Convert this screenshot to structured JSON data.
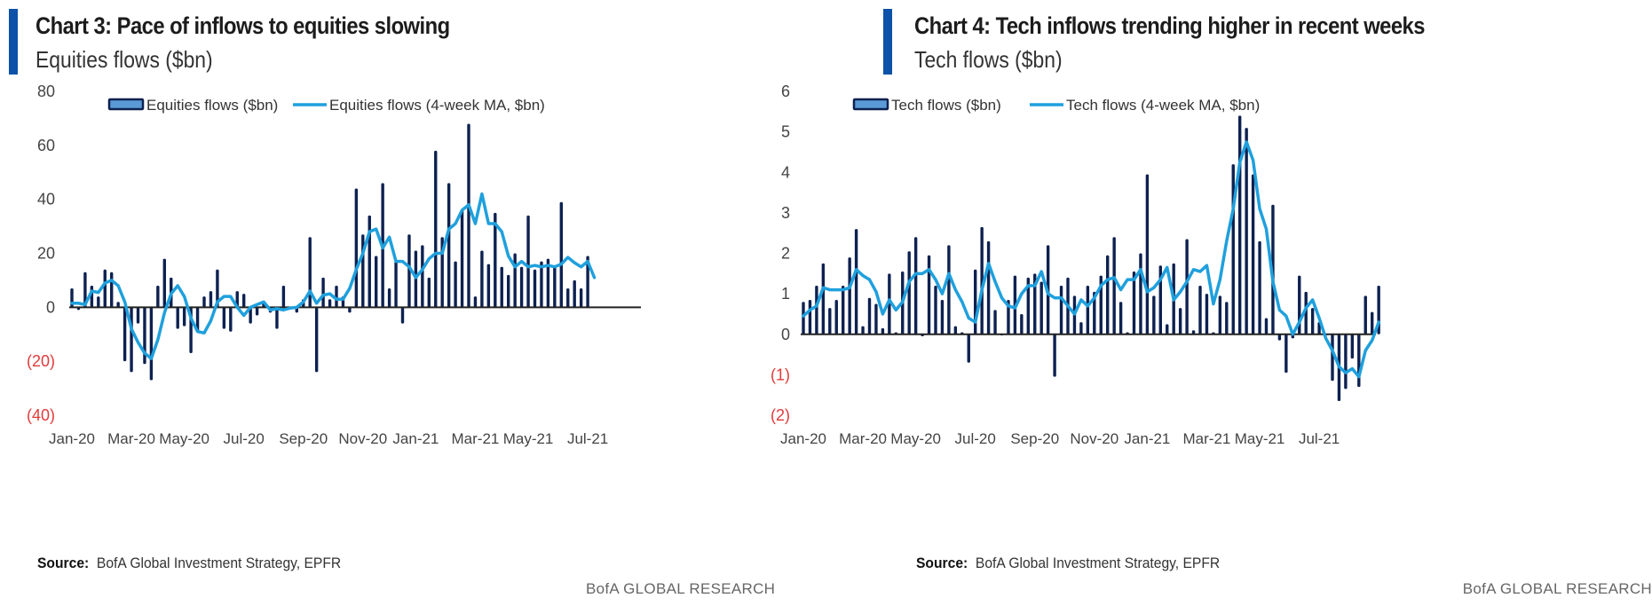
{
  "footer_brand": "BofA GLOBAL RESEARCH",
  "source_label": "Source:",
  "source_text": "BofA Global Investment Strategy, EPFR",
  "colors": {
    "accent": "#0b52a8",
    "bars": "#0d2150",
    "ma_line": "#1fa0dd",
    "negative_tick": "#e03a3a",
    "axis": "#222222"
  },
  "chart_data": [
    {
      "type": "bar",
      "title": "Chart 3: Pace of inflows to equities slowing",
      "subtitle": "Equities flows ($bn)",
      "xlabel": "",
      "ylabel": "Equities flows ($bn)",
      "ylim": [
        -40,
        80
      ],
      "yticks": [
        80,
        60,
        40,
        20,
        0,
        -20,
        -40
      ],
      "ytick_labels": [
        "80",
        "60",
        "40",
        "20",
        "0",
        "(20)",
        "(40)"
      ],
      "xtick_labels": [
        "Jan-20",
        "Mar-20",
        "May-20",
        "Jul-20",
        "Sep-20",
        "Nov-20",
        "Jan-21",
        "Mar-21",
        "May-21",
        "Jul-21"
      ],
      "xtick_index": [
        0,
        9,
        17,
        26,
        35,
        44,
        52,
        61,
        69,
        78
      ],
      "legend": {
        "placement": "top",
        "bars_label": "Equities flows ($bn)",
        "line_label": "Equities flows (4-week MA, $bn)"
      },
      "grid": false,
      "series": [
        {
          "name": "Equities flows ($bn)",
          "kind": "bar",
          "values": [
            7,
            -1,
            13,
            8,
            4,
            14,
            13,
            2,
            -20,
            -24,
            -6,
            -21,
            -27,
            8,
            18,
            11,
            -8,
            -7,
            -17,
            -9,
            4,
            6,
            14,
            -8,
            -9,
            6,
            5,
            -6,
            -3,
            2,
            -2,
            -8,
            8,
            0,
            -2,
            3,
            26,
            -24,
            11,
            3,
            8,
            4,
            -2,
            44,
            27,
            34,
            19,
            46,
            7,
            17,
            -6,
            27,
            21,
            23,
            11,
            58,
            26,
            46,
            17,
            36,
            68,
            4,
            21,
            16,
            35,
            15,
            12,
            20,
            15,
            34,
            14,
            17,
            18,
            15,
            39,
            7,
            10,
            7,
            19
          ]
        },
        {
          "name": "Equities flows (4-week MA, $bn)",
          "kind": "line",
          "values": [
            1.5,
            1.5,
            1,
            6,
            5.5,
            9,
            10,
            8,
            2,
            -8,
            -13,
            -17,
            -19,
            -12,
            -2,
            5,
            8,
            4,
            -4,
            -9,
            -9.5,
            -5,
            2,
            4,
            4,
            0,
            -3,
            0,
            1,
            2,
            -1,
            -0.5,
            -1,
            -0.3,
            0,
            2,
            6,
            1.5,
            4.5,
            5,
            3,
            3,
            7,
            14,
            20,
            28,
            29,
            22,
            26,
            17,
            17,
            15,
            11,
            14,
            18,
            20,
            20,
            29,
            31,
            36,
            38,
            31,
            42,
            31,
            31,
            28,
            19,
            15,
            17,
            15,
            15.5,
            15,
            15.5,
            15,
            16,
            18.5,
            16.5,
            15,
            17,
            11
          ]
        }
      ]
    },
    {
      "type": "bar",
      "title": "Chart 4: Tech inflows trending higher in recent weeks",
      "subtitle": "Tech flows ($bn)",
      "xlabel": "",
      "ylabel": "Tech flows ($bn)",
      "ylim": [
        -2,
        6
      ],
      "yticks": [
        6,
        5,
        4,
        3,
        2,
        1,
        0,
        -1,
        -2
      ],
      "ytick_labels": [
        "6",
        "5",
        "4",
        "3",
        "2",
        "1",
        "0",
        "(1)",
        "(2)"
      ],
      "xtick_labels": [
        "Jan-20",
        "Mar-20",
        "May-20",
        "Jul-20",
        "Sep-20",
        "Nov-20",
        "Jan-21",
        "Mar-21",
        "May-21",
        "Jul-21"
      ],
      "xtick_index": [
        0,
        9,
        17,
        26,
        35,
        44,
        52,
        61,
        69,
        78
      ],
      "legend": {
        "placement": "top",
        "bars_label": "Tech flows ($bn)",
        "line_label": "Tech flows (4-week MA, $bn)"
      },
      "grid": false,
      "series": [
        {
          "name": "Tech flows ($bn)",
          "kind": "bar",
          "values": [
            0.8,
            0.85,
            1.2,
            1.75,
            0.65,
            0.85,
            1.2,
            1.9,
            2.6,
            0.2,
            0.9,
            0.75,
            0.15,
            1.5,
            0.05,
            1.55,
            2.05,
            2.4,
            -0.05,
            1.95,
            1.2,
            0.85,
            2.2,
            0.2,
            0.05,
            -0.7,
            1.6,
            2.65,
            2.3,
            0.6,
            0.0,
            0.85,
            1.45,
            0.5,
            1.4,
            1.5,
            1.3,
            2.2,
            -1.05,
            1.2,
            1.4,
            0.95,
            0.3,
            1.2,
            1.05,
            1.45,
            1.95,
            2.4,
            0.8,
            0.05,
            1.55,
            2.0,
            3.95,
            0.95,
            1.7,
            0.25,
            1.75,
            0.65,
            2.35,
            0.1,
            1.2,
            1.0,
            0.05,
            0.95,
            0.8,
            4.2,
            5.4,
            5.1,
            3.95,
            2.3,
            0.4,
            3.2,
            -0.15,
            -0.95,
            -0.1,
            1.45,
            1.05,
            0.65,
            0.3,
            0.0,
            -1.15,
            -1.65,
            -1.35,
            -0.6,
            -1.3,
            0.95,
            0.55,
            1.2
          ]
        },
        {
          "name": "Tech flows (4-week MA, $bn)",
          "kind": "line",
          "values": [
            0.45,
            0.6,
            0.7,
            1.15,
            1.1,
            1.1,
            1.1,
            1.15,
            1.6,
            1.45,
            1.35,
            1.05,
            0.5,
            0.85,
            0.6,
            0.8,
            1.3,
            1.5,
            1.5,
            1.6,
            1.35,
            1.0,
            1.5,
            1.1,
            0.8,
            0.4,
            0.3,
            1.1,
            1.75,
            1.3,
            0.9,
            0.7,
            0.65,
            1.0,
            1.2,
            1.2,
            1.55,
            1.0,
            0.9,
            0.9,
            0.7,
            0.5,
            0.85,
            0.7,
            0.9,
            1.2,
            1.35,
            1.4,
            1.1,
            1.35,
            1.35,
            1.6,
            1.05,
            1.15,
            1.35,
            1.65,
            0.85,
            1.05,
            1.3,
            1.6,
            1.55,
            1.7,
            0.75,
            1.35,
            2.3,
            3.1,
            4.25,
            4.75,
            4.3,
            3.1,
            2.6,
            1.3,
            0.6,
            0.45,
            0.0,
            0.3,
            0.65,
            0.85,
            0.4,
            -0.1,
            -0.4,
            -0.8,
            -0.95,
            -0.85,
            -1.05,
            -0.4,
            -0.15,
            0.3
          ]
        }
      ]
    }
  ]
}
